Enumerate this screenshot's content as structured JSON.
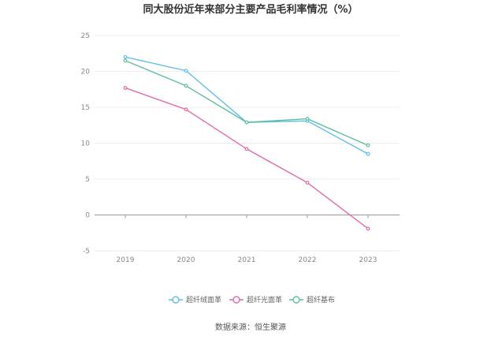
{
  "chart_data": {
    "type": "line",
    "title": "同大股份近年来部分主要产品毛利率情况（%）",
    "categories": [
      "2019",
      "2020",
      "2021",
      "2022",
      "2023"
    ],
    "ylim": [
      -5,
      25
    ],
    "yticks": [
      -5,
      0,
      5,
      10,
      15,
      20,
      25
    ],
    "grid": true,
    "legend_position": "bottom",
    "series": [
      {
        "name": "超纤绒面革",
        "color": "#5bc0eb",
        "values": [
          22.0,
          20.1,
          12.9,
          13.1,
          8.5
        ]
      },
      {
        "name": "超纤光面革",
        "color": "#e06aa9",
        "values": [
          17.7,
          14.7,
          9.2,
          4.5,
          -1.9
        ]
      },
      {
        "name": "超纤基布",
        "color": "#5cbf9b",
        "values": [
          21.5,
          18.0,
          12.9,
          13.4,
          9.7
        ]
      }
    ]
  },
  "source": "数据来源：恒生聚源"
}
